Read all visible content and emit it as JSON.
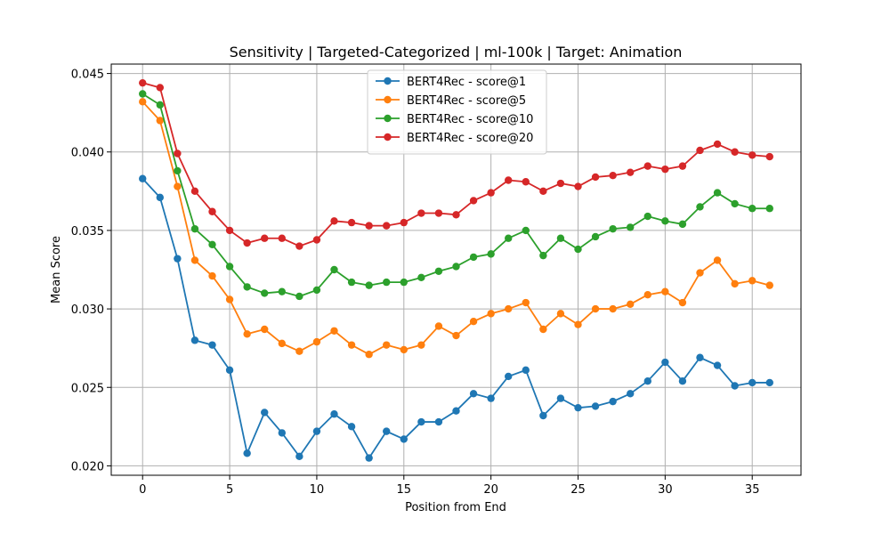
{
  "chart_data": {
    "type": "line",
    "title": "Sensitivity | Targeted-Categorized | ml-100k | Target: Animation",
    "xlabel": "Position from End",
    "ylabel": "Mean Score",
    "xlim": [
      -1.8,
      37.8
    ],
    "ylim": [
      0.0194,
      0.0456
    ],
    "xticks": [
      0,
      5,
      10,
      15,
      20,
      25,
      30,
      35
    ],
    "yticks": [
      0.02,
      0.025,
      0.03,
      0.035,
      0.04,
      0.045
    ],
    "grid": true,
    "legend_position": "upper-center",
    "x": [
      0,
      1,
      2,
      3,
      4,
      5,
      6,
      7,
      8,
      9,
      10,
      11,
      12,
      13,
      14,
      15,
      16,
      17,
      18,
      19,
      20,
      21,
      22,
      23,
      24,
      25,
      26,
      27,
      28,
      29,
      30,
      31,
      32,
      33,
      34,
      35,
      36
    ],
    "series": [
      {
        "name": "BERT4Rec - score@1",
        "color": "#1f77b4",
        "values": [
          0.0383,
          0.0371,
          0.0332,
          0.028,
          0.0277,
          0.0261,
          0.0208,
          0.0234,
          0.0221,
          0.0206,
          0.0222,
          0.0233,
          0.0225,
          0.0205,
          0.0222,
          0.0217,
          0.0228,
          0.0228,
          0.0235,
          0.0246,
          0.0243,
          0.0257,
          0.0261,
          0.0232,
          0.0243,
          0.0237,
          0.0238,
          0.0241,
          0.0246,
          0.0254,
          0.0266,
          0.0254,
          0.0269,
          0.0264,
          0.0251,
          0.0253,
          0.0253
        ]
      },
      {
        "name": "BERT4Rec - score@5",
        "color": "#ff7f0e",
        "values": [
          0.0432,
          0.042,
          0.0378,
          0.0331,
          0.0321,
          0.0306,
          0.0284,
          0.0287,
          0.0278,
          0.0273,
          0.0279,
          0.0286,
          0.0277,
          0.0271,
          0.0277,
          0.0274,
          0.0277,
          0.0289,
          0.0283,
          0.0292,
          0.0297,
          0.03,
          0.0304,
          0.0287,
          0.0297,
          0.029,
          0.03,
          0.03,
          0.0303,
          0.0309,
          0.0311,
          0.0304,
          0.0323,
          0.0331,
          0.0316,
          0.0318,
          0.0315
        ]
      },
      {
        "name": "BERT4Rec - score@10",
        "color": "#2ca02c",
        "values": [
          0.0437,
          0.043,
          0.0388,
          0.0351,
          0.0341,
          0.0327,
          0.0314,
          0.031,
          0.0311,
          0.0308,
          0.0312,
          0.0325,
          0.0317,
          0.0315,
          0.0317,
          0.0317,
          0.032,
          0.0324,
          0.0327,
          0.0333,
          0.0335,
          0.0345,
          0.035,
          0.0334,
          0.0345,
          0.0338,
          0.0346,
          0.0351,
          0.0352,
          0.0359,
          0.0356,
          0.0354,
          0.0365,
          0.0374,
          0.0367,
          0.0364,
          0.0364
        ]
      },
      {
        "name": "BERT4Rec - score@20",
        "color": "#d62728",
        "values": [
          0.0444,
          0.0441,
          0.0399,
          0.0375,
          0.0362,
          0.035,
          0.0342,
          0.0345,
          0.0345,
          0.034,
          0.0344,
          0.0356,
          0.0355,
          0.0353,
          0.0353,
          0.0355,
          0.0361,
          0.0361,
          0.036,
          0.0369,
          0.0374,
          0.0382,
          0.0381,
          0.0375,
          0.038,
          0.0378,
          0.0384,
          0.0385,
          0.0387,
          0.0391,
          0.0389,
          0.0391,
          0.0401,
          0.0405,
          0.04,
          0.0398,
          0.0397
        ]
      }
    ]
  }
}
